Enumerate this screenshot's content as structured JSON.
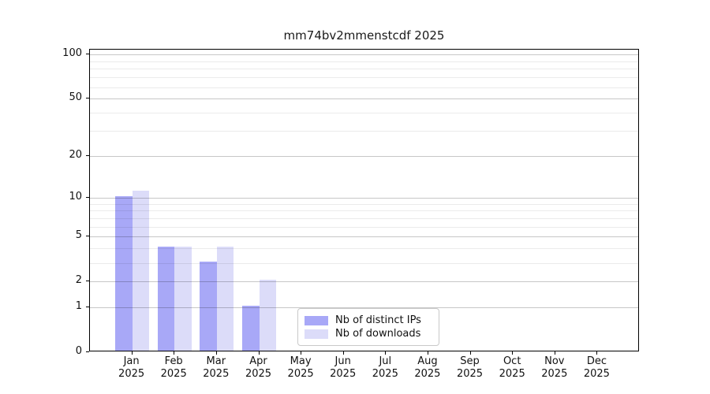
{
  "title": "mm74bv2mmenstcdf 2025",
  "chart_data": {
    "type": "bar",
    "title": "mm74bv2mmenstcdf 2025",
    "categories": [
      "Jan",
      "Feb",
      "Mar",
      "Apr",
      "May",
      "Jun",
      "Jul",
      "Aug",
      "Sep",
      "Oct",
      "Nov",
      "Dec"
    ],
    "x_year_label": "2025",
    "series": [
      {
        "name": "Nb of distinct IPs",
        "color": "#a8a8f7",
        "values": [
          10,
          4,
          3,
          1,
          0,
          0,
          0,
          0,
          0,
          0,
          0,
          0
        ]
      },
      {
        "name": "Nb of downloads",
        "color": "#dcdcf9",
        "values": [
          11,
          4,
          4,
          2,
          0,
          0,
          0,
          0,
          0,
          0,
          0,
          0
        ]
      }
    ],
    "yscale": "log10(value+1)",
    "ylim": [
      0,
      108
    ],
    "y_ticks": [
      100,
      50,
      20,
      10,
      5,
      2,
      1,
      0
    ],
    "y_minor_gridlines": [
      3,
      4,
      6,
      7,
      8,
      9,
      30,
      40,
      60,
      70,
      80,
      90
    ],
    "grid": "horizontal",
    "legend_position": "inside-bottom-center"
  },
  "colors": {
    "grid_major": "rgba(0,0,0,0.22)",
    "grid_minor": "rgba(0,0,0,0.08)",
    "axis": "#000000",
    "legend_border": "#c9c9c9",
    "background": "#ffffff"
  }
}
